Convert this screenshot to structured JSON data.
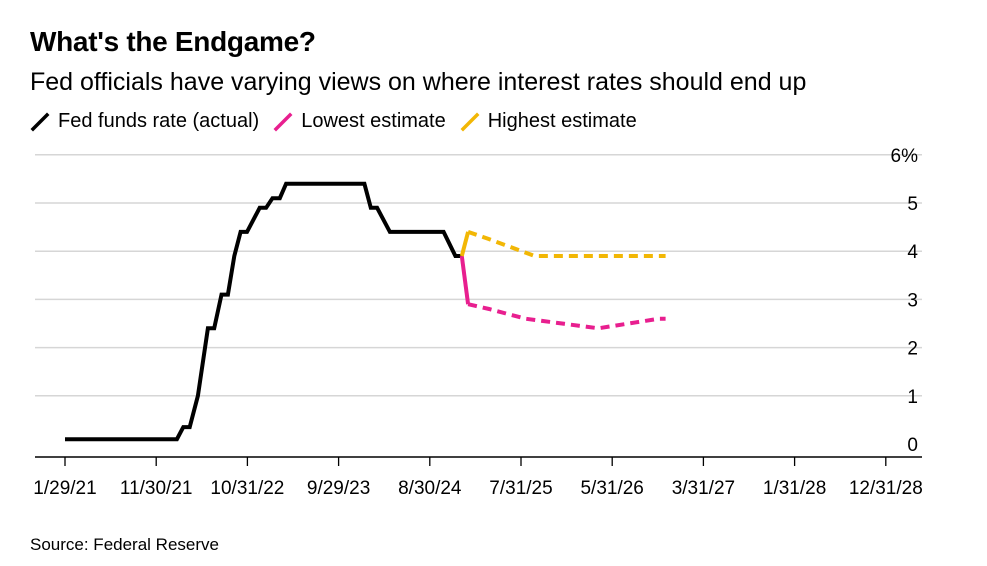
{
  "header": {
    "title": "What's the Endgame?",
    "subtitle": "Fed officials have varying views on where interest rates should end up"
  },
  "legend": [
    {
      "label": "Fed funds rate (actual)",
      "color": "#000000"
    },
    {
      "label": "Lowest estimate",
      "color": "#e81f8f"
    },
    {
      "label": "Highest estimate",
      "color": "#f2b705"
    }
  ],
  "source": "Source: Federal Reserve",
  "chart_data": {
    "type": "line",
    "title": "What's the Endgame?",
    "xlabel": "",
    "ylabel": "",
    "ylim": [
      -0.4,
      6
    ],
    "x_tick_labels": [
      "1/29/21",
      "11/30/21",
      "10/31/22",
      "9/29/23",
      "8/30/24",
      "7/31/25",
      "5/31/26",
      "3/31/27",
      "1/31/28",
      "12/31/28"
    ],
    "y_tick_labels": [
      "0",
      "1",
      "2",
      "3",
      "4",
      "5",
      "6%"
    ],
    "y_tick_values": [
      0,
      1,
      2,
      3,
      4,
      5,
      6
    ],
    "units": "% (x values in months since Jan 2021)",
    "series": [
      {
        "name": "Fed funds rate (actual)",
        "style": "solid",
        "points": [
          [
            0,
            0.1
          ],
          [
            12.3,
            0.1
          ],
          [
            13.0,
            0.35
          ],
          [
            13.7,
            0.35
          ],
          [
            14.6,
            1.0
          ],
          [
            15.7,
            2.4
          ],
          [
            16.4,
            2.4
          ],
          [
            17.2,
            3.1
          ],
          [
            17.9,
            3.1
          ],
          [
            18.6,
            3.9
          ],
          [
            19.3,
            4.4
          ],
          [
            20.0,
            4.4
          ],
          [
            21.4,
            4.9
          ],
          [
            22.1,
            4.9
          ],
          [
            22.8,
            5.1
          ],
          [
            23.6,
            5.1
          ],
          [
            24.3,
            5.4
          ],
          [
            32.9,
            5.4
          ],
          [
            33.6,
            4.9
          ],
          [
            34.3,
            4.9
          ],
          [
            35.7,
            4.4
          ],
          [
            41.6,
            4.4
          ],
          [
            42.9,
            3.9
          ],
          [
            43.6,
            3.9
          ]
        ]
      },
      {
        "name": "Lowest estimate",
        "style": "solid-then-dashed",
        "points": [
          [
            43.6,
            3.9
          ],
          [
            44.3,
            2.9
          ],
          [
            46.6,
            2.8
          ],
          [
            50.6,
            2.6
          ],
          [
            58.6,
            2.4
          ],
          [
            65.3,
            2.6
          ],
          [
            66.0,
            2.6
          ]
        ]
      },
      {
        "name": "Highest estimate",
        "style": "solid-then-dashed",
        "points": [
          [
            43.6,
            3.9
          ],
          [
            44.3,
            4.4
          ],
          [
            46.6,
            4.25
          ],
          [
            51.6,
            3.9
          ],
          [
            66.0,
            3.9
          ]
        ]
      }
    ]
  }
}
